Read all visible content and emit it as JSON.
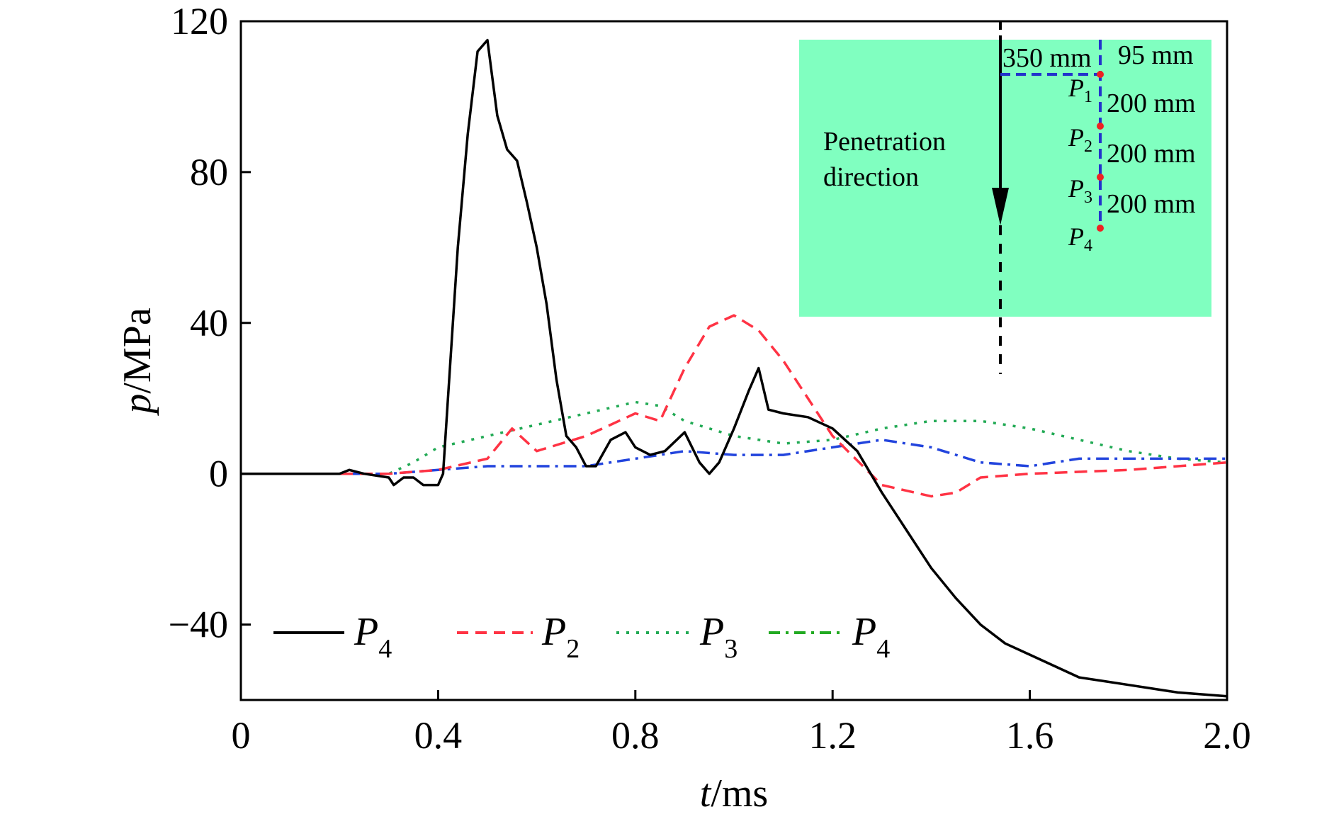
{
  "chart_data": {
    "type": "line",
    "title": "",
    "xlabel": {
      "var": "t",
      "unit": "/ms"
    },
    "ylabel": {
      "var": "p",
      "unit": "/MPa"
    },
    "xlim": [
      0,
      2.0
    ],
    "ylim": [
      -60,
      120
    ],
    "x_ticks": [
      0,
      0.4,
      0.8,
      1.2,
      1.6,
      2.0
    ],
    "x_tick_labels": [
      "0",
      "0.4",
      "0.8",
      "1.2",
      "1.6",
      "2.0"
    ],
    "y_ticks": [
      120,
      80,
      40,
      0,
      -40
    ],
    "y_tick_labels": [
      "120",
      "80",
      "40",
      "0",
      "−40"
    ],
    "grid": false,
    "legend_position": "bottom-left",
    "colors": {
      "P4_solid": "#000000",
      "P2": "#ff3344",
      "P3": "#22aa55",
      "P4_dashdot": "#2244dd",
      "inset_fill": "#80ffc0",
      "inset_sensor": "#ee2222",
      "inset_line": "#2233cc"
    },
    "series": [
      {
        "name": "P4",
        "sub": "4",
        "style": "solid",
        "color": "#000000",
        "x": [
          0,
          0.1,
          0.2,
          0.22,
          0.25,
          0.3,
          0.31,
          0.33,
          0.35,
          0.37,
          0.4,
          0.41,
          0.42,
          0.44,
          0.46,
          0.48,
          0.5,
          0.52,
          0.54,
          0.56,
          0.58,
          0.6,
          0.62,
          0.64,
          0.66,
          0.68,
          0.7,
          0.72,
          0.75,
          0.78,
          0.8,
          0.83,
          0.86,
          0.9,
          0.93,
          0.95,
          0.97,
          1.0,
          1.03,
          1.05,
          1.07,
          1.1,
          1.15,
          1.2,
          1.25,
          1.3,
          1.35,
          1.4,
          1.45,
          1.5,
          1.55,
          1.6,
          1.65,
          1.7,
          1.75,
          1.8,
          1.9,
          2.0
        ],
        "y": [
          0,
          0,
          0,
          1,
          0,
          -1,
          -3,
          -1,
          -1,
          -3,
          -3,
          0,
          20,
          60,
          90,
          112,
          115,
          95,
          86,
          83,
          72,
          60,
          45,
          25,
          10,
          7,
          2,
          2,
          9,
          11,
          7,
          5,
          6,
          11,
          3,
          0,
          3,
          12,
          22,
          28,
          17,
          16,
          15,
          12,
          6,
          -5,
          -15,
          -25,
          -33,
          -40,
          -45,
          -48,
          -51,
          -54,
          -55,
          -56,
          -58,
          -59
        ]
      },
      {
        "name": "P2",
        "sub": "2",
        "style": "dashed",
        "color": "#ff3344",
        "x": [
          0,
          0.2,
          0.3,
          0.4,
          0.5,
          0.55,
          0.6,
          0.7,
          0.75,
          0.8,
          0.85,
          0.9,
          0.95,
          1.0,
          1.05,
          1.1,
          1.2,
          1.3,
          1.4,
          1.45,
          1.5,
          1.6,
          1.8,
          2.0
        ],
        "y": [
          0,
          0,
          0,
          1,
          4,
          12,
          6,
          10,
          13,
          16,
          14,
          28,
          39,
          42,
          38,
          30,
          10,
          -3,
          -6,
          -5,
          -1,
          0,
          1,
          3
        ]
      },
      {
        "name": "P3",
        "sub": "3",
        "style": "dotted",
        "color": "#22aa55",
        "x": [
          0,
          0.3,
          0.35,
          0.4,
          0.5,
          0.6,
          0.7,
          0.8,
          0.85,
          0.9,
          0.95,
          1.0,
          1.1,
          1.2,
          1.3,
          1.4,
          1.5,
          1.6,
          1.7,
          1.8,
          1.9,
          2.0
        ],
        "y": [
          0,
          0,
          3,
          7,
          10,
          13,
          16,
          19,
          18,
          14,
          12,
          10,
          8,
          9,
          12,
          14,
          14,
          12,
          9,
          6,
          4,
          3
        ]
      },
      {
        "name": "P4",
        "sub": "4",
        "style": "dashdot",
        "color": "#2244dd",
        "x": [
          0,
          0.3,
          0.4,
          0.5,
          0.6,
          0.7,
          0.8,
          0.9,
          1.0,
          1.1,
          1.2,
          1.3,
          1.4,
          1.5,
          1.6,
          1.7,
          1.8,
          1.9,
          2.0
        ],
        "y": [
          0,
          0,
          1,
          2,
          2,
          2,
          4,
          6,
          5,
          5,
          7,
          9,
          7,
          3,
          2,
          4,
          4,
          4,
          4
        ]
      }
    ],
    "legend": [
      {
        "var": "P",
        "sub": "4"
      },
      {
        "var": "P",
        "sub": "2"
      },
      {
        "var": "P",
        "sub": "3"
      },
      {
        "var": "P",
        "sub": "4"
      }
    ],
    "inset": {
      "label_line1": "Penetration",
      "label_line2": "direction",
      "dim_horizontal": "350 mm",
      "dim_top": "95 mm",
      "spacing": [
        "200 mm",
        "200 mm",
        "200 mm"
      ],
      "sensors": [
        {
          "var": "P",
          "sub": "1"
        },
        {
          "var": "P",
          "sub": "2"
        },
        {
          "var": "P",
          "sub": "3"
        },
        {
          "var": "P",
          "sub": "4"
        }
      ]
    }
  }
}
